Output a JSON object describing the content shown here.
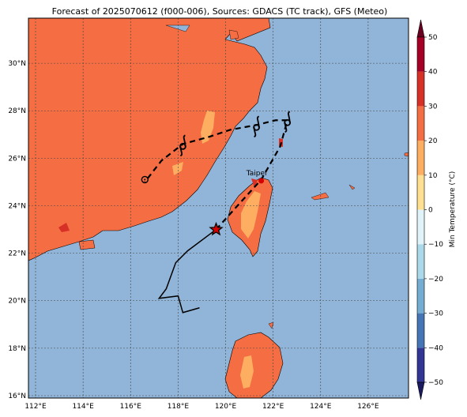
{
  "title": "Forecast of 2025070612 (f000-006), Sources: GDACS (TC track), GFS (Meteo)",
  "map": {
    "lon_range": [
      111.7,
      127.7
    ],
    "lat_range": [
      15.9,
      31.9
    ],
    "lon_ticks": [
      112,
      114,
      116,
      118,
      120,
      122,
      124,
      126
    ],
    "lat_ticks": [
      16,
      18,
      20,
      22,
      24,
      26,
      28,
      30
    ],
    "lon_tick_labels": [
      "112°E",
      "114°E",
      "116°E",
      "118°E",
      "120°E",
      "122°E",
      "124°E",
      "126°E"
    ],
    "lat_tick_labels": [
      "16°N",
      "18°N",
      "20°N",
      "22°N",
      "24°N",
      "26°N",
      "28°N",
      "30°N"
    ],
    "gridlines": true,
    "city": {
      "name": "Taipei",
      "lon": 121.5,
      "lat": 25.05
    },
    "current_position": {
      "lon": 119.6,
      "lat": 23.0,
      "marker": "star"
    },
    "observed_track": [
      [
        119.6,
        23.0
      ],
      [
        118.4,
        22.1
      ],
      [
        117.9,
        21.6
      ],
      [
        117.5,
        20.5
      ],
      [
        117.2,
        20.1
      ],
      [
        118.0,
        20.2
      ],
      [
        118.2,
        19.5
      ],
      [
        118.9,
        19.7
      ]
    ],
    "forecast_track": [
      [
        119.6,
        23.0
      ],
      [
        120.5,
        24.0
      ],
      [
        121.5,
        25.1
      ],
      [
        122.3,
        26.5
      ],
      [
        122.6,
        27.6
      ],
      [
        122.1,
        27.6
      ],
      [
        121.3,
        27.4
      ],
      [
        120.2,
        27.2
      ],
      [
        119.3,
        26.9
      ],
      [
        118.2,
        26.6
      ],
      [
        117.3,
        25.9
      ],
      [
        116.6,
        25.0
      ]
    ],
    "forecast_symbols": [
      {
        "lon": 122.6,
        "lat": 27.6,
        "symbol": "typhoon"
      },
      {
        "lon": 121.3,
        "lat": 27.4,
        "symbol": "typhoon"
      },
      {
        "lon": 118.2,
        "lat": 26.6,
        "symbol": "typhoon"
      },
      {
        "lon": 116.6,
        "lat": 25.1,
        "symbol": "low"
      }
    ]
  },
  "colorbar": {
    "label": "Min Temperature (°C)",
    "min": -50,
    "max": 50,
    "step": 10,
    "tick_labels": [
      "50",
      "40",
      "30",
      "20",
      "10",
      "0",
      "−10",
      "−20",
      "−30",
      "−40",
      "−50"
    ],
    "colors_low_to_high": [
      "#313695",
      "#4575b4",
      "#74add1",
      "#abd9e9",
      "#e0f3f8",
      "#fee090",
      "#fdae61",
      "#f46d43",
      "#d73027",
      "#a50026"
    ],
    "under_color": "#1a1a60",
    "over_color": "#6a0020"
  },
  "field_colors": {
    "sea": "#91b4d9",
    "land": "#f46d43",
    "warm_patch": "#fdae61",
    "hot_spot": "#d73027"
  }
}
